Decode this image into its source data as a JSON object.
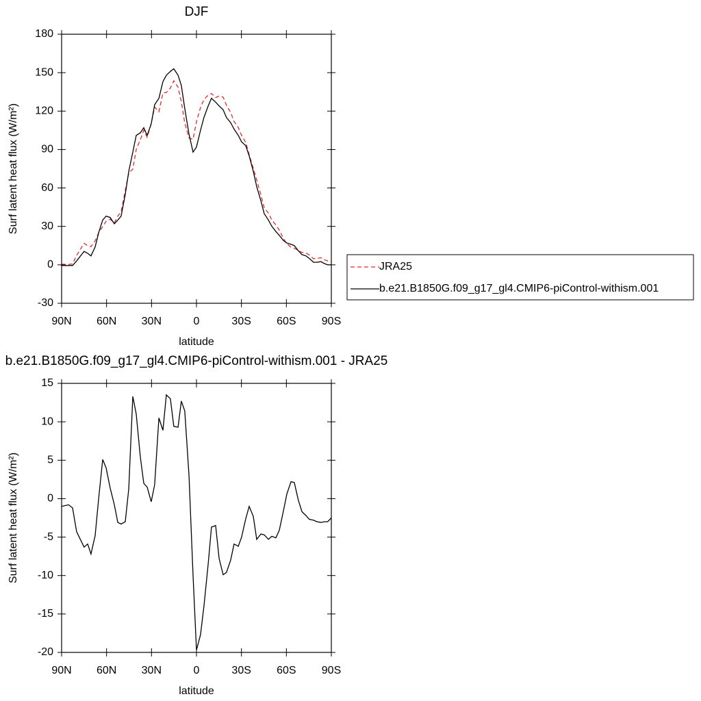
{
  "chart_data": [
    {
      "type": "line",
      "title": "DJF",
      "xlabel": "latitude",
      "ylabel": "Surf latent heat flux (W/m²)",
      "x": [
        90,
        85.4,
        82.7,
        80,
        75,
        72.6,
        70.4,
        67.6,
        65.3,
        62.6,
        60.3,
        57.6,
        54.8,
        52.5,
        50.3,
        47.5,
        45.2,
        42.5,
        40.2,
        37.5,
        35.2,
        32.9,
        30.2,
        27.9,
        25.1,
        22.4,
        20.1,
        17.4,
        15.1,
        12.3,
        10.1,
        7.8,
        5,
        2.3,
        0,
        -2.7,
        -5,
        -7.8,
        -10,
        -12.8,
        -15.1,
        -17.8,
        -20,
        -22.8,
        -25.1,
        -27.9,
        -30.1,
        -32.9,
        -35.2,
        -37.9,
        -40.2,
        -43,
        -45.2,
        -48,
        -50.3,
        -53,
        -55.3,
        -58,
        -60.3,
        -63.1,
        -65.3,
        -68,
        -70.4,
        -73.1,
        -75.3,
        -78.1,
        -80.4,
        -83.1,
        -85.4,
        -87.6,
        -90
      ],
      "series": [
        {
          "name": "JRA25",
          "color": "#e8262b",
          "line_style": "dashed",
          "values": [
            0.5,
            0.3,
            0.7,
            7.3,
            16.8,
            14.9,
            14.2,
            18.8,
            25,
            29.9,
            34,
            35.6,
            32.8,
            38.1,
            41.3,
            58,
            71.7,
            74.7,
            90,
            97.5,
            105,
            99.5,
            110.4,
            123.2,
            119.5,
            134.1,
            134.5,
            138,
            143.6,
            138.7,
            127.3,
            110.6,
            99,
            98,
            111.7,
            122.7,
            129,
            132.5,
            133.7,
            130.5,
            131.8,
            130.9,
            124.6,
            119,
            111.9,
            107.2,
            101,
            95.6,
            86,
            75.3,
            66.3,
            54.6,
            44.7,
            40.3,
            34.9,
            31.1,
            27.1,
            20.6,
            16.4,
            13.8,
            12.9,
            11.2,
            9.7,
            9.2,
            7.7,
            4.8,
            5,
            5.6,
            4,
            3,
            2.5
          ]
        },
        {
          "name": "b.e21.B1850G.f09_g17_gl4.CMIP6-piControl-withism.001",
          "color": "#000000",
          "line_style": "solid",
          "values": [
            -0.5,
            -0.5,
            -0.5,
            3,
            10.5,
            9,
            7,
            14,
            25,
            35,
            38,
            37,
            32,
            35,
            38,
            55,
            73,
            88,
            101,
            103,
            107,
            101,
            110,
            125,
            130,
            143,
            148,
            151,
            153,
            148,
            140,
            122,
            102,
            88,
            92,
            105,
            115,
            124,
            130,
            127,
            124,
            121,
            115,
            111,
            106,
            101,
            96,
            93,
            85,
            73,
            61,
            50,
            40,
            35,
            30,
            26,
            23,
            19,
            17,
            16,
            15,
            11,
            8,
            7,
            5,
            2,
            2,
            2.5,
            1,
            0,
            0
          ]
        }
      ],
      "xlim": [
        90,
        -90
      ],
      "xticks": [
        {
          "value": 90,
          "label": "90N"
        },
        {
          "value": 60,
          "label": "60N"
        },
        {
          "value": 30,
          "label": "30N"
        },
        0,
        {
          "value": -30,
          "label": "30S"
        },
        {
          "value": -60,
          "label": "60S"
        },
        {
          "value": -90,
          "label": "90S"
        }
      ],
      "ylim": [
        -30,
        180
      ],
      "yticks": [
        -30,
        0,
        30,
        60,
        90,
        120,
        150,
        180
      ],
      "legend": "right"
    },
    {
      "type": "line",
      "title": "b.e21.B1850G.f09_g17_gl4.CMIP6-piControl-withism.001 - JRA25",
      "xlabel": "latitude",
      "ylabel": "Surf latent heat flux (W/m²)",
      "x": [
        90,
        85.4,
        82.7,
        80,
        75,
        72.6,
        70.4,
        67.6,
        65.3,
        62.6,
        60.3,
        57.6,
        54.8,
        52.5,
        50.3,
        47.5,
        45.2,
        42.5,
        40.2,
        37.5,
        35.2,
        32.9,
        30.2,
        27.9,
        25.1,
        22.4,
        20.1,
        17.4,
        15.1,
        12.3,
        10.1,
        7.8,
        5,
        2.3,
        0,
        -2.7,
        -5,
        -7.8,
        -10,
        -12.8,
        -15.1,
        -17.8,
        -20,
        -22.8,
        -25.1,
        -27.9,
        -30.1,
        -32.9,
        -35.2,
        -37.9,
        -40.2,
        -43,
        -45.2,
        -48,
        -50.3,
        -53,
        -55.3,
        -58,
        -60.3,
        -63.1,
        -65.3,
        -68,
        -70.4,
        -73.1,
        -75.3,
        -78.1,
        -80.4,
        -83.1,
        -85.4,
        -87.6,
        -90
      ],
      "series": [
        {
          "color": "#000000",
          "line_style": "solid",
          "values": [
            -1.0,
            -0.8,
            -1.2,
            -4.3,
            -6.3,
            -5.9,
            -7.2,
            -4.8,
            0,
            5.1,
            4.0,
            1.4,
            -0.8,
            -3.1,
            -3.3,
            -3.0,
            1.3,
            13.3,
            11.0,
            5.5,
            2.0,
            1.5,
            -0.4,
            1.8,
            10.5,
            8.9,
            13.5,
            13.0,
            9.4,
            9.3,
            12.7,
            11.4,
            3.0,
            -10,
            -19.7,
            -17.7,
            -14,
            -8.5,
            -3.7,
            -3.5,
            -7.8,
            -9.9,
            -9.6,
            -8.0,
            -5.9,
            -6.2,
            -5.0,
            -2.6,
            -1.0,
            -2.3,
            -5.3,
            -4.6,
            -4.7,
            -5.3,
            -4.9,
            -5.1,
            -4.1,
            -1.6,
            0.6,
            2.2,
            2.1,
            -0.2,
            -1.7,
            -2.2,
            -2.7,
            -2.8,
            -3.0,
            -3.1,
            -3.0,
            -3.0,
            -2.5
          ]
        }
      ],
      "xlim": [
        90,
        -90
      ],
      "xticks": [
        {
          "value": 90,
          "label": "90N"
        },
        {
          "value": 60,
          "label": "60N"
        },
        {
          "value": 30,
          "label": "30N"
        },
        0,
        {
          "value": -30,
          "label": "30S"
        },
        {
          "value": -60,
          "label": "60S"
        },
        {
          "value": -90,
          "label": "90S"
        }
      ],
      "ylim": [
        -20,
        15
      ],
      "yticks": [
        -20,
        -15,
        -10,
        -5,
        0,
        5,
        10,
        15
      ]
    }
  ]
}
